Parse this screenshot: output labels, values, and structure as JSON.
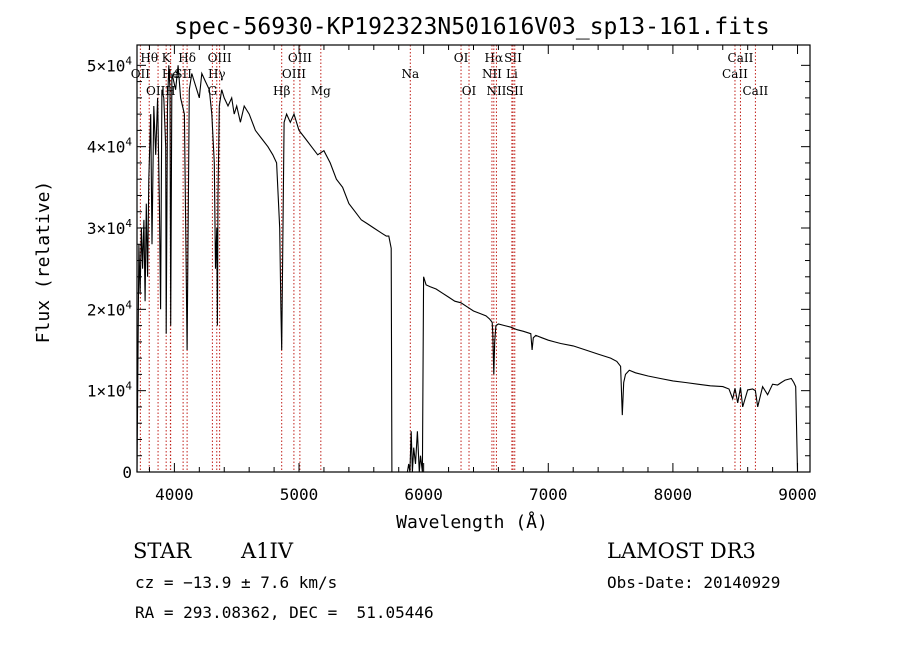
{
  "chart_data": {
    "type": "line",
    "title": "spec-56930-KP192323N501616V03_sp13-161.fits",
    "xlabel": "Wavelength (Å)",
    "ylabel": "Flux (relative)",
    "xlim": [
      3700,
      9100
    ],
    "ylim": [
      0,
      52500
    ],
    "x_ticks": [
      4000,
      5000,
      6000,
      7000,
      8000,
      9000
    ],
    "x_tick_labels": [
      "4000",
      "5000",
      "6000",
      "7000",
      "8000",
      "9000"
    ],
    "y_ticks": [
      0,
      10000,
      20000,
      30000,
      40000,
      50000
    ],
    "y_tick_labels": [
      {
        "mant": "0",
        "exp": ""
      },
      {
        "mant": "1×10",
        "exp": "4"
      },
      {
        "mant": "2×10",
        "exp": "4"
      },
      {
        "mant": "3×10",
        "exp": "4"
      },
      {
        "mant": "4×10",
        "exp": "4"
      },
      {
        "mant": "5×10",
        "exp": "4"
      }
    ],
    "spectrum": {
      "name": "flux",
      "x": [
        3700,
        3715,
        3725,
        3735,
        3745,
        3755,
        3765,
        3775,
        3785,
        3795,
        3800,
        3810,
        3820,
        3835,
        3850,
        3865,
        3880,
        3889,
        3900,
        3915,
        3930,
        3934,
        3945,
        3955,
        3965,
        3970,
        3980,
        3995,
        4010,
        4030,
        4050,
        4080,
        4102,
        4120,
        4140,
        4160,
        4180,
        4200,
        4220,
        4250,
        4280,
        4300,
        4320,
        4330,
        4340,
        4345,
        4350,
        4360,
        4380,
        4400,
        4430,
        4460,
        4480,
        4500,
        4530,
        4560,
        4600,
        4650,
        4700,
        4750,
        4790,
        4820,
        4845,
        4855,
        4861,
        4870,
        4880,
        4900,
        4930,
        4960,
        5000,
        5050,
        5100,
        5150,
        5200,
        5250,
        5300,
        5350,
        5400,
        5450,
        5500,
        5550,
        5600,
        5650,
        5700,
        5720,
        5740,
        5745,
        5760,
        5800,
        5850,
        5870,
        5880,
        5890,
        5900,
        5910,
        5920,
        5935,
        5950,
        5965,
        5975,
        5990,
        6000,
        6020,
        6050,
        6100,
        6150,
        6200,
        6250,
        6300,
        6350,
        6400,
        6450,
        6500,
        6530,
        6550,
        6555,
        6563,
        6570,
        6580,
        6600,
        6650,
        6700,
        6750,
        6800,
        6860,
        6870,
        6880,
        6900,
        6950,
        7000,
        7050,
        7100,
        7200,
        7300,
        7400,
        7500,
        7550,
        7580,
        7594,
        7605,
        7620,
        7650,
        7700,
        7800,
        7900,
        8000,
        8100,
        8200,
        8300,
        8400,
        8450,
        8480,
        8498,
        8520,
        8542,
        8560,
        8600,
        8640,
        8662,
        8680,
        8720,
        8760,
        8800,
        8840,
        8870,
        8900,
        8950,
        8970,
        8985,
        9000
      ],
      "y": [
        0,
        28000,
        22000,
        30000,
        25000,
        31000,
        21000,
        33000,
        24000,
        36000,
        39000,
        44000,
        28000,
        45000,
        39000,
        46000,
        33000,
        20000,
        47000,
        46000,
        40000,
        17000,
        45000,
        50000,
        47000,
        18000,
        49000,
        48000,
        47000,
        50000,
        46000,
        44000,
        15000,
        47000,
        49000,
        48000,
        47000,
        46000,
        49000,
        48000,
        47000,
        44000,
        38000,
        25000,
        30000,
        18000,
        34000,
        45000,
        47000,
        46000,
        45000,
        46000,
        44000,
        45000,
        43000,
        45000,
        44000,
        42000,
        41000,
        40000,
        39000,
        38000,
        30000,
        20000,
        15000,
        28000,
        43000,
        44000,
        43000,
        44000,
        42000,
        41000,
        40000,
        39000,
        39500,
        38000,
        36000,
        35000,
        33000,
        32000,
        31000,
        30500,
        30000,
        29500,
        29000,
        29000,
        27500,
        0,
        0,
        0,
        0,
        0,
        1000,
        0,
        5000,
        0,
        3000,
        1000,
        5000,
        0,
        2000,
        0,
        24000,
        23000,
        22800,
        22500,
        22000,
        21500,
        21000,
        20800,
        20300,
        19800,
        19500,
        19200,
        18800,
        18400,
        17000,
        12000,
        16000,
        18000,
        18200,
        18000,
        17800,
        17500,
        17300,
        17000,
        15000,
        16500,
        16800,
        16500,
        16200,
        16000,
        15800,
        15500,
        15000,
        14500,
        14000,
        13600,
        13000,
        7000,
        11000,
        12000,
        12500,
        12200,
        11800,
        11500,
        11200,
        11000,
        10800,
        10600,
        10500,
        10200,
        9000,
        10300,
        8500,
        10400,
        8000,
        10100,
        10200,
        10000,
        8000,
        10500,
        9500,
        10800,
        10700,
        11000,
        11300,
        11500,
        11000,
        10500,
        0
      ]
    },
    "lines": [
      {
        "name": "Hθ",
        "x": 3798,
        "row": 1
      },
      {
        "name": "OII",
        "x": 3727,
        "row": 2
      },
      {
        "name": "OIII",
        "x": 3869,
        "row": 3
      },
      {
        "name": "K",
        "x": 3934,
        "row": 1
      },
      {
        "name": "He",
        "x": 3970,
        "row": 2
      },
      {
        "name": "H",
        "x": 3968,
        "row": 3
      },
      {
        "name": "Hδ",
        "x": 4102,
        "row": 1
      },
      {
        "name": "SII",
        "x": 4070,
        "row": 2
      },
      {
        "name": "OIII",
        "x": 4363,
        "row": 1
      },
      {
        "name": "Hγ",
        "x": 4340,
        "row": 2
      },
      {
        "name": "G",
        "x": 4305,
        "row": 3
      },
      {
        "name": "OIII",
        "x": 5007,
        "row": 1
      },
      {
        "name": "OIII",
        "x": 4959,
        "row": 2
      },
      {
        "name": "Hβ",
        "x": 4861,
        "row": 3
      },
      {
        "name": "Mg",
        "x": 5175,
        "row": 3
      },
      {
        "name": "Na",
        "x": 5893,
        "row": 2
      },
      {
        "name": "OI",
        "x": 6300,
        "row": 1
      },
      {
        "name": "OI",
        "x": 6364,
        "row": 3
      },
      {
        "name": "Hα",
        "x": 6563,
        "row": 1
      },
      {
        "name": "NII",
        "x": 6548,
        "row": 2
      },
      {
        "name": "NII",
        "x": 6584,
        "row": 3
      },
      {
        "name": "SII",
        "x": 6717,
        "row": 1
      },
      {
        "name": "Li",
        "x": 6708,
        "row": 2
      },
      {
        "name": "SII",
        "x": 6731,
        "row": 3
      },
      {
        "name": "CaII",
        "x": 8542,
        "row": 1
      },
      {
        "name": "CaII",
        "x": 8498,
        "row": 2
      },
      {
        "name": "CaII",
        "x": 8662,
        "row": 3
      }
    ]
  },
  "footer": {
    "object_class": "STAR",
    "subclass": "A1IV",
    "survey": "LAMOST DR3",
    "redshift": "cz = −13.9 ± 7.6 km/s",
    "obs_date": "Obs-Date: 20140929",
    "coords": "RA = 293.08362, DEC =  51.05446"
  },
  "colors": {
    "line_marker": "#c0201a",
    "spectrum": "#000000"
  }
}
